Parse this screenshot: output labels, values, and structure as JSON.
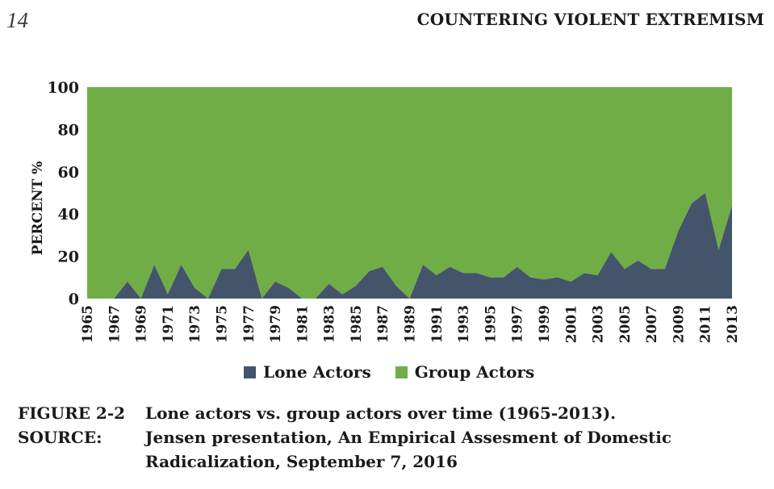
{
  "header": {
    "page_number": "14",
    "running_head": "COUNTERING VIOLENT EXTREMISM"
  },
  "colors": {
    "lone": "#44546a",
    "group": "#70ad47"
  },
  "chart_data": {
    "type": "area",
    "stacked": true,
    "ylabel": "PERCENT %",
    "ylim": [
      0,
      100
    ],
    "yticks": [
      0,
      20,
      40,
      60,
      80,
      100
    ],
    "xlim": [
      1965,
      2013
    ],
    "xtick_labels": [
      "1965",
      "1967",
      "1969",
      "1971",
      "1973",
      "1975",
      "1977",
      "1979",
      "1981",
      "1983",
      "1985",
      "1987",
      "1989",
      "1991",
      "1993",
      "1995",
      "1997",
      "1999",
      "2001",
      "2003",
      "2005",
      "2007",
      "2009",
      "2011",
      "2013"
    ],
    "x": [
      1965,
      1966,
      1967,
      1968,
      1969,
      1970,
      1971,
      1972,
      1973,
      1974,
      1975,
      1976,
      1977,
      1978,
      1979,
      1980,
      1981,
      1982,
      1983,
      1984,
      1985,
      1986,
      1987,
      1988,
      1989,
      1990,
      1991,
      1992,
      1993,
      1994,
      1995,
      1996,
      1997,
      1998,
      1999,
      2000,
      2001,
      2002,
      2003,
      2004,
      2005,
      2006,
      2007,
      2008,
      2009,
      2010,
      2011,
      2012,
      2013
    ],
    "series": [
      {
        "name": "Lone Actors",
        "values": [
          0,
          0,
          0,
          8,
          0,
          16,
          2,
          16,
          5,
          0,
          14,
          14,
          23,
          0,
          8,
          5,
          0,
          0,
          7,
          2,
          6,
          13,
          15,
          6,
          0,
          16,
          11,
          15,
          12,
          12,
          10,
          10,
          15,
          10,
          9,
          10,
          8,
          12,
          11,
          22,
          14,
          18,
          14,
          14,
          32,
          45,
          50,
          23,
          44
        ]
      },
      {
        "name": "Group Actors",
        "values": [
          100,
          100,
          100,
          92,
          100,
          84,
          98,
          84,
          95,
          100,
          86,
          86,
          77,
          100,
          92,
          95,
          100,
          100,
          93,
          98,
          94,
          87,
          85,
          94,
          100,
          84,
          89,
          85,
          88,
          88,
          90,
          90,
          85,
          90,
          91,
          90,
          92,
          88,
          89,
          78,
          86,
          82,
          86,
          86,
          68,
          55,
          50,
          77,
          56
        ]
      }
    ],
    "legend": [
      "Lone Actors",
      "Group Actors"
    ],
    "legend_position": "bottom"
  },
  "caption": {
    "label_1": "FIGURE 2-2",
    "text_1": "Lone actors vs. group actors over time (1965-2013).",
    "label_2": "SOURCE:",
    "text_2": "Jensen presentation, An Empirical Assesment of Domestic",
    "text_3": "Radicalization, September 7, 2016"
  }
}
